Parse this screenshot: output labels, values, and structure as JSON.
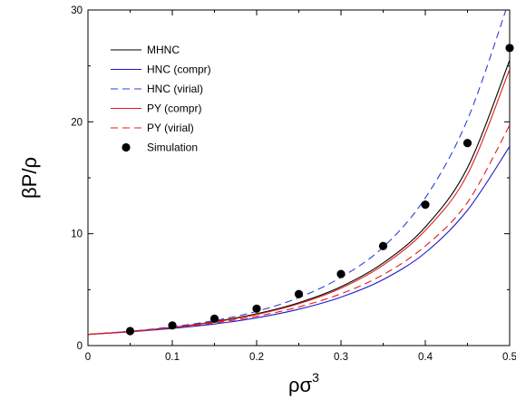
{
  "chart_data": {
    "type": "line",
    "title": "",
    "xlabel": "ρσ",
    "xlabel_superscript": "3",
    "ylabel": "βP/ρ",
    "xlim": [
      0,
      0.5
    ],
    "ylim": [
      0,
      30
    ],
    "xticks": [
      0,
      0.1,
      0.2,
      0.3,
      0.4,
      0.5
    ],
    "xtick_labels": [
      "0",
      "0.1",
      "0.2",
      "0.3",
      "0.4",
      "0.5"
    ],
    "yticks": [
      0,
      10,
      20,
      30
    ],
    "ytick_labels": [
      "0",
      "10",
      "20",
      "30"
    ],
    "grid": false,
    "legend_position": "top-left",
    "x": [
      0,
      0.05,
      0.1,
      0.15,
      0.2,
      0.25,
      0.3,
      0.35,
      0.4,
      0.45,
      0.5
    ],
    "series": [
      {
        "name": "MHNC",
        "color": "#000000",
        "dash": "solid",
        "values": [
          1.0,
          1.26,
          1.63,
          2.14,
          2.84,
          3.83,
          5.26,
          7.38,
          10.6,
          15.9,
          25.5
        ]
      },
      {
        "name": "HNC (compr)",
        "color": "#1a1acc",
        "dash": "solid",
        "values": [
          1.0,
          1.23,
          1.53,
          1.93,
          2.48,
          3.25,
          4.33,
          5.9,
          8.3,
          12.1,
          17.8
        ]
      },
      {
        "name": "HNC (virial)",
        "color": "#2b3fd6",
        "dash": "dashed",
        "values": [
          1.0,
          1.28,
          1.68,
          2.24,
          3.06,
          4.29,
          6.1,
          8.8,
          13.2,
          20.2,
          31.0
        ]
      },
      {
        "name": "PY (compr)",
        "color": "#e01b1b",
        "dash": "solid",
        "values": [
          1.0,
          1.26,
          1.61,
          2.1,
          2.78,
          3.74,
          5.13,
          7.19,
          10.3,
          15.3,
          24.7
        ]
      },
      {
        "name": "PY (virial)",
        "color": "#e01b1b",
        "dash": "dashed",
        "values": [
          1.0,
          1.25,
          1.58,
          2.02,
          2.62,
          3.45,
          4.63,
          6.34,
          8.9,
          12.8,
          19.7
        ]
      }
    ],
    "scatter": {
      "name": "Simulation",
      "color": "#000000",
      "points": [
        [
          0.05,
          1.3
        ],
        [
          0.1,
          1.8
        ],
        [
          0.15,
          2.4
        ],
        [
          0.2,
          3.3
        ],
        [
          0.25,
          4.6
        ],
        [
          0.3,
          6.4
        ],
        [
          0.35,
          8.9
        ],
        [
          0.4,
          12.6
        ],
        [
          0.45,
          18.1
        ],
        [
          0.5,
          26.6
        ]
      ]
    }
  }
}
